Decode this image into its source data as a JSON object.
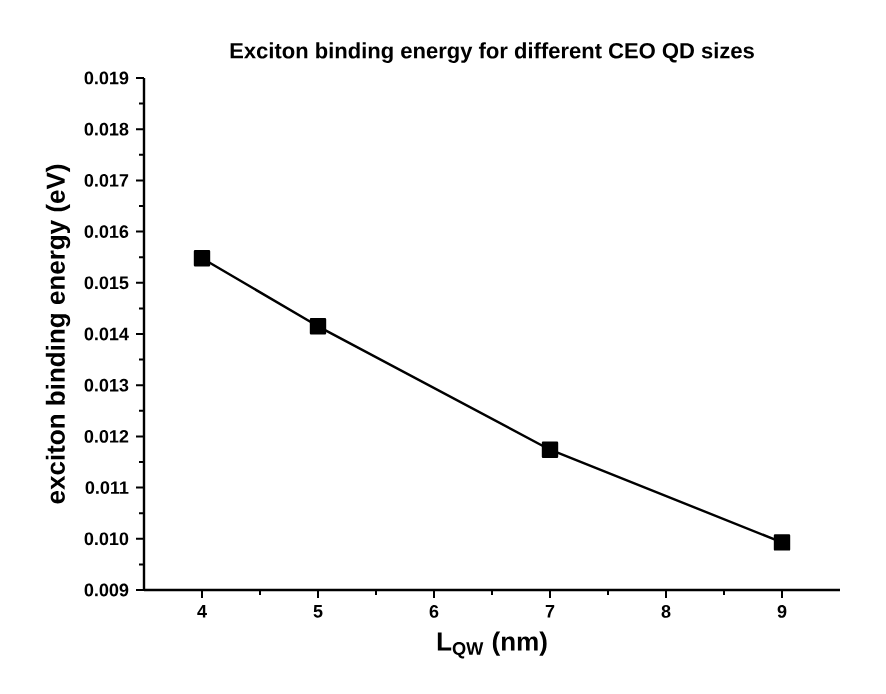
{
  "chart_data": {
    "type": "line",
    "title": "Exciton binding energy for different CEO QD sizes",
    "xlabel": "L$_{QW}$ (nm)",
    "ylabel": "exciton binding energy (eV)",
    "x": [
      4,
      5,
      7,
      9
    ],
    "series": [
      {
        "color": "#000000",
        "values": [
          0.01548,
          0.01415,
          0.01174,
          0.00993
        ]
      }
    ],
    "xlim": [
      3.5,
      9.5
    ],
    "xticks": [
      4,
      5,
      6,
      7,
      8,
      9
    ],
    "ylim": [
      0.009,
      0.019
    ],
    "yticks": [
      0.009,
      {
        "value": 0.01,
        "label": "0.010"
      },
      0.011,
      0.012,
      0.013,
      0.014,
      0.015,
      0.016,
      0.017,
      0.018,
      0.019
    ],
    "marker": "square",
    "line_style": "solid"
  }
}
